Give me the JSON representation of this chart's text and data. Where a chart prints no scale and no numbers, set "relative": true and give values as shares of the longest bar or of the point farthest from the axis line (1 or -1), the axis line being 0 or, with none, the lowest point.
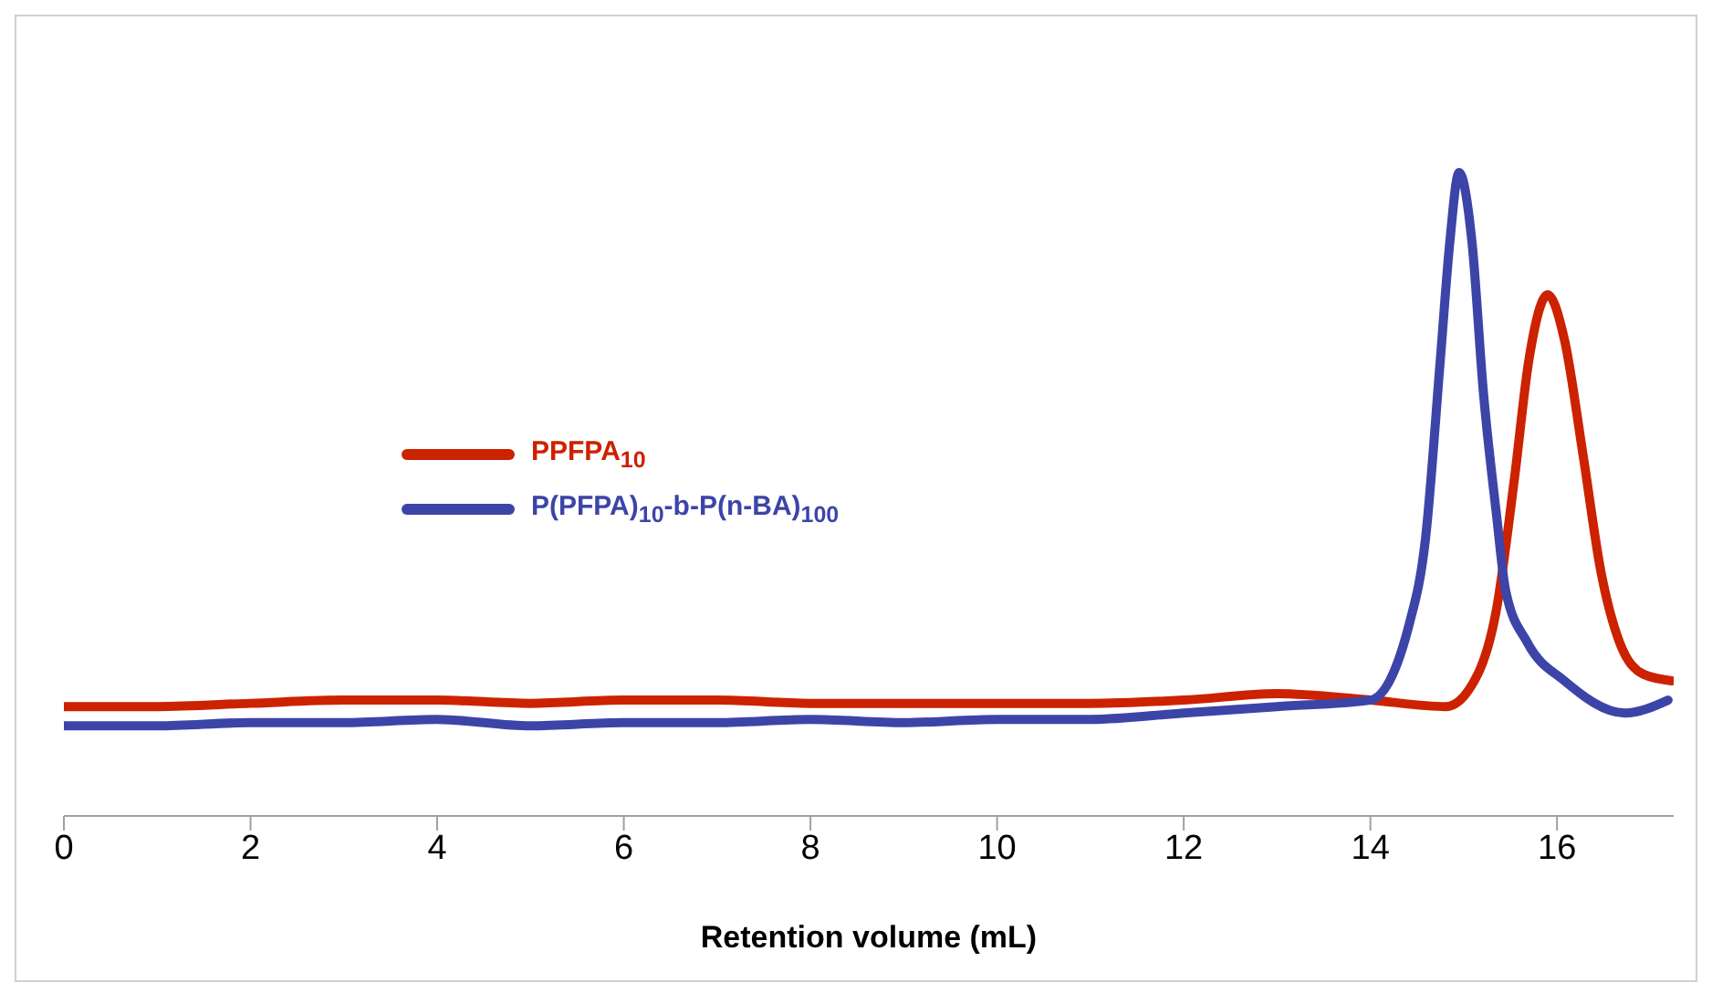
{
  "chart_data": {
    "type": "line",
    "relative": true,
    "xlabel": "Retention volume (mL)",
    "xlim": [
      0,
      17.25
    ],
    "xticks": [
      0,
      2,
      4,
      6,
      8,
      10,
      12,
      14,
      16
    ],
    "grid": false,
    "legend": "left",
    "marker": "none",
    "line_style": "solid",
    "series": [
      {
        "name": "PPFPA$_{10}$",
        "color": "#cc2200",
        "x": [
          0,
          1,
          2,
          3,
          4,
          5,
          6,
          7,
          8,
          9,
          10,
          11,
          12,
          13,
          14,
          14.81,
          15.15,
          15.35,
          15.54,
          15.7,
          15.9,
          16.08,
          16.28,
          16.47,
          16.67,
          16.93,
          17.23
        ],
        "values": [
          0.17,
          0.17,
          0.175,
          0.18,
          0.18,
          0.175,
          0.18,
          0.18,
          0.175,
          0.175,
          0.175,
          0.175,
          0.18,
          0.19,
          0.18,
          0.17,
          0.22,
          0.32,
          0.52,
          0.71,
          0.81,
          0.74,
          0.56,
          0.38,
          0.27,
          0.22,
          0.21
        ]
      },
      {
        "name": "P(PFPA)$_{10}$-b-P(n-BA)$_{100}$",
        "color": "#3d44a8",
        "x": [
          0,
          1,
          2,
          3,
          4,
          5,
          6,
          7,
          8,
          9,
          10,
          11,
          12,
          13,
          14,
          14.42,
          14.59,
          14.75,
          14.85,
          14.95,
          15.09,
          15.21,
          15.35,
          15.45,
          15.68,
          16.08,
          16.73,
          17.19
        ],
        "values": [
          0.14,
          0.14,
          0.145,
          0.145,
          0.15,
          0.14,
          0.145,
          0.145,
          0.15,
          0.145,
          0.15,
          0.15,
          0.16,
          0.17,
          0.18,
          0.3,
          0.43,
          0.71,
          0.89,
          1,
          0.89,
          0.66,
          0.47,
          0.35,
          0.27,
          0.21,
          0.16,
          0.18
        ]
      }
    ]
  }
}
